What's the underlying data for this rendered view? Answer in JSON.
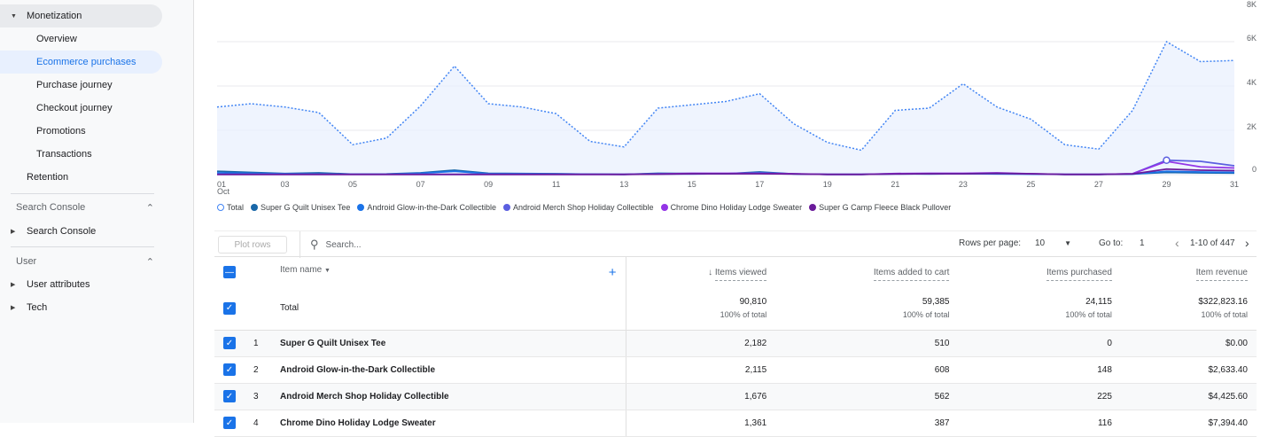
{
  "sidebar": {
    "monetization": "Monetization",
    "items": [
      "Overview",
      "Ecommerce purchases",
      "Purchase journey",
      "Checkout journey",
      "Promotions",
      "Transactions"
    ],
    "retention": "Retention",
    "search_console_section": "Search Console",
    "search_console_item": "Search Console",
    "user_section": "User",
    "user_attributes": "User attributes",
    "tech": "Tech"
  },
  "chart_data": {
    "type": "line",
    "x": [
      1,
      2,
      3,
      4,
      5,
      6,
      7,
      8,
      9,
      10,
      11,
      12,
      13,
      14,
      15,
      16,
      17,
      18,
      19,
      20,
      21,
      22,
      23,
      24,
      25,
      26,
      27,
      28,
      29,
      30,
      31
    ],
    "x_tick_labels": [
      "01",
      "03",
      "05",
      "07",
      "09",
      "11",
      "13",
      "15",
      "17",
      "19",
      "21",
      "23",
      "25",
      "27",
      "29",
      "31"
    ],
    "x_sub_label": "Oct",
    "y_tick_labels": [
      "8K",
      "6K",
      "4K",
      "2K",
      "0"
    ],
    "ylim": [
      0,
      8000
    ],
    "series": [
      {
        "name": "Total",
        "color": "#4285f4",
        "values": [
          3050,
          3200,
          3050,
          2800,
          1350,
          1650,
          3100,
          4900,
          3200,
          3050,
          2750,
          1500,
          1250,
          3000,
          3150,
          3300,
          3650,
          2300,
          1450,
          1100,
          2900,
          3000,
          4100,
          3050,
          2500,
          1350,
          1150,
          2900,
          6000,
          5100,
          5150
        ]
      },
      {
        "name": "Super G Quilt Unisex Tee",
        "color": "#1967a8",
        "values": [
          150,
          100,
          50,
          80,
          20,
          30,
          80,
          200,
          60,
          50,
          40,
          20,
          10,
          60,
          50,
          40,
          120,
          30,
          10,
          10,
          40,
          30,
          40,
          50,
          30,
          10,
          10,
          30,
          100,
          80,
          70
        ]
      },
      {
        "name": "Android Glow-in-the-Dark Collectible",
        "color": "#1a73e8",
        "values": [
          80,
          60,
          40,
          30,
          20,
          20,
          60,
          150,
          40,
          40,
          30,
          20,
          10,
          40,
          30,
          40,
          80,
          30,
          10,
          10,
          30,
          30,
          40,
          30,
          20,
          10,
          10,
          20,
          150,
          120,
          100
        ]
      },
      {
        "name": "Android Merch Shop Holiday Collectible",
        "color": "#5b5fe0",
        "values": [
          10,
          10,
          10,
          10,
          10,
          10,
          10,
          10,
          10,
          10,
          10,
          10,
          10,
          20,
          30,
          40,
          50,
          30,
          10,
          10,
          30,
          40,
          40,
          50,
          30,
          10,
          10,
          40,
          650,
          600,
          400
        ]
      },
      {
        "name": "Chrome Dino Holiday Lodge Sweater",
        "color": "#9334e6",
        "values": [
          10,
          10,
          10,
          10,
          10,
          10,
          10,
          10,
          10,
          10,
          10,
          10,
          10,
          30,
          60,
          60,
          60,
          40,
          10,
          10,
          50,
          60,
          60,
          80,
          40,
          10,
          10,
          40,
          600,
          350,
          300
        ]
      },
      {
        "name": "Super G Camp Fleece Black Pullover",
        "color": "#6a1b9a",
        "values": [
          10,
          10,
          10,
          10,
          10,
          10,
          10,
          10,
          10,
          10,
          10,
          10,
          10,
          20,
          40,
          40,
          40,
          30,
          10,
          10,
          30,
          40,
          40,
          60,
          40,
          10,
          10,
          30,
          250,
          200,
          180
        ]
      }
    ]
  },
  "toolbar": {
    "plot_rows": "Plot rows",
    "search_placeholder": "Search...",
    "rows_per_page_label": "Rows per page:",
    "rows_per_page": "10",
    "goto_label": "Go to:",
    "goto_value": "1",
    "range": "1-10 of 447"
  },
  "table": {
    "headers": [
      "Item name",
      "Items viewed",
      "Items added to cart",
      "Items purchased",
      "Item revenue"
    ],
    "total": {
      "label": "Total",
      "values": [
        "90,810",
        "59,385",
        "24,115",
        "$322,823.16"
      ],
      "pct": "100% of total"
    },
    "rows": [
      {
        "rank": "1",
        "name": "Super G Quilt Unisex Tee",
        "values": [
          "2,182",
          "510",
          "0",
          "$0.00"
        ]
      },
      {
        "rank": "2",
        "name": "Android Glow-in-the-Dark Collectible",
        "values": [
          "2,115",
          "608",
          "148",
          "$2,633.40"
        ]
      },
      {
        "rank": "3",
        "name": "Android Merch Shop Holiday Collectible",
        "values": [
          "1,676",
          "562",
          "225",
          "$4,425.60"
        ]
      },
      {
        "rank": "4",
        "name": "Chrome Dino Holiday Lodge Sweater",
        "values": [
          "1,361",
          "387",
          "116",
          "$7,394.40"
        ]
      }
    ]
  }
}
